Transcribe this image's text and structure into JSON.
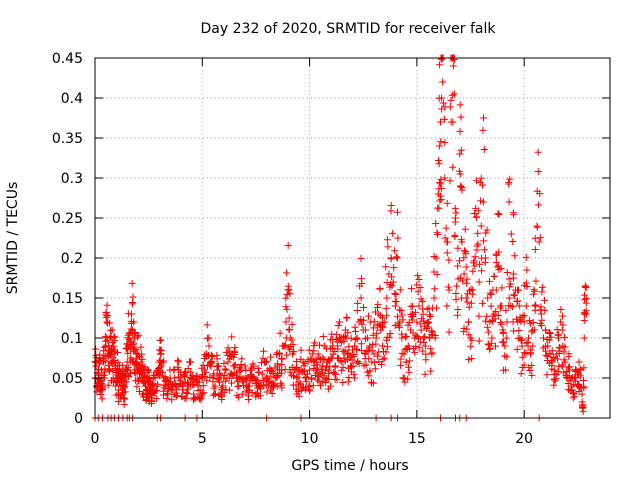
{
  "chart_data": {
    "type": "scatter",
    "title": "Day 232 of 2020, SRMTID for receiver falk",
    "xlabel": "GPS time / hours",
    "ylabel": "SRMTID / TECUs",
    "xlim": [
      0,
      24
    ],
    "ylim": [
      0,
      0.45
    ],
    "xticks": [
      0,
      5,
      10,
      15,
      20
    ],
    "yticks": [
      0,
      0.05,
      0.1,
      0.15,
      0.2,
      0.25,
      0.3,
      0.35,
      0.4,
      0.45
    ],
    "xtick_labels": [
      "0",
      "5",
      "10",
      "15",
      "20"
    ],
    "ytick_labels": [
      "0",
      "0.05",
      "0.1",
      "0.15",
      "0.2",
      "0.25",
      "0.3",
      "0.35",
      "0.4",
      "0.45"
    ],
    "grid": true,
    "marker": "+",
    "color": "#ff0000",
    "series": [
      {
        "name": "SRMTID",
        "points": [
          [
            0.0,
            0.05
          ],
          [
            0.05,
            0.065
          ],
          [
            0.1,
            0.04
          ],
          [
            0.15,
            0.055
          ],
          [
            0.2,
            0.07
          ],
          [
            0.25,
            0.045
          ],
          [
            0.3,
            0.06
          ],
          [
            0.35,
            0.035
          ],
          [
            0.4,
            0.075
          ],
          [
            0.45,
            0.05
          ],
          [
            0.5,
            0.09
          ],
          [
            0.55,
            0.12
          ],
          [
            0.6,
            0.08
          ],
          [
            0.65,
            0.06
          ],
          [
            0.7,
            0.1
          ],
          [
            0.75,
            0.07
          ],
          [
            0.8,
            0.11
          ],
          [
            0.85,
            0.05
          ],
          [
            0.9,
            0.085
          ],
          [
            0.95,
            0.065
          ],
          [
            1.0,
            0.045
          ],
          [
            1.05,
            0.06
          ],
          [
            1.1,
            0.035
          ],
          [
            1.15,
            0.05
          ],
          [
            1.2,
            0.04
          ],
          [
            1.25,
            0.03
          ],
          [
            1.3,
            0.055
          ],
          [
            1.35,
            0.025
          ],
          [
            1.4,
            0.045
          ],
          [
            1.45,
            0.06
          ],
          [
            1.5,
            0.07
          ],
          [
            1.55,
            0.09
          ],
          [
            1.6,
            0.1
          ],
          [
            1.65,
            0.075
          ],
          [
            1.7,
            0.13
          ],
          [
            1.75,
            0.11
          ],
          [
            1.8,
            0.12
          ],
          [
            1.85,
            0.085
          ],
          [
            1.9,
            0.07
          ],
          [
            1.95,
            0.065
          ],
          [
            2.0,
            0.08
          ],
          [
            2.05,
            0.06
          ],
          [
            2.1,
            0.055
          ],
          [
            2.15,
            0.07
          ],
          [
            2.2,
            0.05
          ],
          [
            2.25,
            0.045
          ],
          [
            2.3,
            0.06
          ],
          [
            2.35,
            0.04
          ],
          [
            2.4,
            0.035
          ],
          [
            2.45,
            0.05
          ],
          [
            2.5,
            0.045
          ],
          [
            2.55,
            0.03
          ],
          [
            2.6,
            0.04
          ],
          [
            2.65,
            0.025
          ],
          [
            2.7,
            0.035
          ],
          [
            2.8,
            0.05
          ],
          [
            2.9,
            0.04
          ],
          [
            3.0,
            0.085
          ],
          [
            3.05,
            0.07
          ],
          [
            3.1,
            0.065
          ],
          [
            3.2,
            0.05
          ],
          [
            3.3,
            0.04
          ],
          [
            3.4,
            0.03
          ],
          [
            3.5,
            0.045
          ],
          [
            3.6,
            0.035
          ],
          [
            3.7,
            0.05
          ],
          [
            3.8,
            0.04
          ],
          [
            3.9,
            0.06
          ],
          [
            4.0,
            0.05
          ],
          [
            4.1,
            0.035
          ],
          [
            4.2,
            0.045
          ],
          [
            4.3,
            0.04
          ],
          [
            4.4,
            0.07
          ],
          [
            4.5,
            0.05
          ],
          [
            4.6,
            0.03
          ],
          [
            4.7,
            0.045
          ],
          [
            4.8,
            0.04
          ],
          [
            4.9,
            0.035
          ],
          [
            5.0,
            0.05
          ],
          [
            5.1,
            0.06
          ],
          [
            5.2,
            0.08
          ],
          [
            5.3,
            0.1
          ],
          [
            5.4,
            0.07
          ],
          [
            5.5,
            0.05
          ],
          [
            5.6,
            0.04
          ],
          [
            5.7,
            0.06
          ],
          [
            5.8,
            0.045
          ],
          [
            5.9,
            0.035
          ],
          [
            6.0,
            0.05
          ],
          [
            6.1,
            0.06
          ],
          [
            6.2,
            0.07
          ],
          [
            6.3,
            0.055
          ],
          [
            6.4,
            0.08
          ],
          [
            6.5,
            0.065
          ],
          [
            6.6,
            0.05
          ],
          [
            6.7,
            0.04
          ],
          [
            6.8,
            0.06
          ],
          [
            6.9,
            0.045
          ],
          [
            7.0,
            0.05
          ],
          [
            7.1,
            0.035
          ],
          [
            7.2,
            0.04
          ],
          [
            7.3,
            0.06
          ],
          [
            7.4,
            0.05
          ],
          [
            7.5,
            0.03
          ],
          [
            7.6,
            0.045
          ],
          [
            7.7,
            0.04
          ],
          [
            7.8,
            0.055
          ],
          [
            7.9,
            0.07
          ],
          [
            8.0,
            0.05
          ],
          [
            8.1,
            0.045
          ],
          [
            8.2,
            0.06
          ],
          [
            8.3,
            0.04
          ],
          [
            8.4,
            0.05
          ],
          [
            8.5,
            0.065
          ],
          [
            8.6,
            0.08
          ],
          [
            8.7,
            0.06
          ],
          [
            8.8,
            0.09
          ],
          [
            8.9,
            0.12
          ],
          [
            9.0,
            0.16
          ],
          [
            9.05,
            0.125
          ],
          [
            9.1,
            0.1
          ],
          [
            9.2,
            0.08
          ],
          [
            9.3,
            0.06
          ],
          [
            9.4,
            0.05
          ],
          [
            9.5,
            0.045
          ],
          [
            9.6,
            0.06
          ],
          [
            9.7,
            0.07
          ],
          [
            9.8,
            0.05
          ],
          [
            9.9,
            0.055
          ],
          [
            10.0,
            0.06
          ],
          [
            10.1,
            0.05
          ],
          [
            10.2,
            0.07
          ],
          [
            10.3,
            0.06
          ],
          [
            10.4,
            0.08
          ],
          [
            10.5,
            0.055
          ],
          [
            10.6,
            0.065
          ],
          [
            10.7,
            0.09
          ],
          [
            10.8,
            0.07
          ],
          [
            10.9,
            0.06
          ],
          [
            11.0,
            0.075
          ],
          [
            11.1,
            0.08
          ],
          [
            11.2,
            0.065
          ],
          [
            11.3,
            0.09
          ],
          [
            11.4,
            0.1
          ],
          [
            11.5,
            0.07
          ],
          [
            11.6,
            0.075
          ],
          [
            11.7,
            0.1
          ],
          [
            11.8,
            0.08
          ],
          [
            11.9,
            0.065
          ],
          [
            12.0,
            0.085
          ],
          [
            12.1,
            0.09
          ],
          [
            12.2,
            0.1
          ],
          [
            12.3,
            0.12
          ],
          [
            12.4,
            0.15
          ],
          [
            12.5,
            0.11
          ],
          [
            12.6,
            0.08
          ],
          [
            12.7,
            0.1
          ],
          [
            12.8,
            0.09
          ],
          [
            12.9,
            0.07
          ],
          [
            13.0,
            0.08
          ],
          [
            13.1,
            0.1
          ],
          [
            13.2,
            0.13
          ],
          [
            13.3,
            0.11
          ],
          [
            13.4,
            0.09
          ],
          [
            13.5,
            0.12
          ],
          [
            13.6,
            0.15
          ],
          [
            13.7,
            0.18
          ],
          [
            13.8,
            0.2
          ],
          [
            13.9,
            0.17
          ],
          [
            14.0,
            0.14
          ],
          [
            14.1,
            0.2
          ],
          [
            14.2,
            0.12
          ],
          [
            14.3,
            0.1
          ],
          [
            14.4,
            0.08
          ],
          [
            14.5,
            0.07
          ],
          [
            14.6,
            0.09
          ],
          [
            14.7,
            0.11
          ],
          [
            14.8,
            0.13
          ],
          [
            14.9,
            0.1
          ],
          [
            15.0,
            0.12
          ],
          [
            15.1,
            0.14
          ],
          [
            15.2,
            0.11
          ],
          [
            15.3,
            0.1
          ],
          [
            15.4,
            0.09
          ],
          [
            15.5,
            0.12
          ],
          [
            15.6,
            0.1
          ],
          [
            15.7,
            0.08
          ],
          [
            15.8,
            0.15
          ],
          [
            15.9,
            0.2
          ],
          [
            16.0,
            0.28
          ],
          [
            16.05,
            0.34
          ],
          [
            16.1,
            0.37
          ],
          [
            16.15,
            0.4
          ],
          [
            16.2,
            0.42
          ],
          [
            16.3,
            0.3
          ],
          [
            16.4,
            0.22
          ],
          [
            16.5,
            0.16
          ],
          [
            16.6,
            0.37
          ],
          [
            16.7,
            0.44
          ],
          [
            16.75,
            0.405
          ],
          [
            16.8,
            0.25
          ],
          [
            16.9,
            0.19
          ],
          [
            17.0,
            0.33
          ],
          [
            17.05,
            0.29
          ],
          [
            17.1,
            0.22
          ],
          [
            17.2,
            0.18
          ],
          [
            17.3,
            0.15
          ],
          [
            17.4,
            0.12
          ],
          [
            17.5,
            0.1
          ],
          [
            17.6,
            0.16
          ],
          [
            17.7,
            0.19
          ],
          [
            17.8,
            0.21
          ],
          [
            17.9,
            0.17
          ],
          [
            18.0,
            0.24
          ],
          [
            18.1,
            0.27
          ],
          [
            18.2,
            0.2
          ],
          [
            18.3,
            0.15
          ],
          [
            18.4,
            0.12
          ],
          [
            18.5,
            0.1
          ],
          [
            18.6,
            0.13
          ],
          [
            18.7,
            0.16
          ],
          [
            18.8,
            0.19
          ],
          [
            18.9,
            0.14
          ],
          [
            19.0,
            0.11
          ],
          [
            19.1,
            0.09
          ],
          [
            19.2,
            0.12
          ],
          [
            19.3,
            0.27
          ],
          [
            19.4,
            0.23
          ],
          [
            19.5,
            0.18
          ],
          [
            19.6,
            0.16
          ],
          [
            19.7,
            0.12
          ],
          [
            19.8,
            0.1
          ],
          [
            19.9,
            0.09
          ],
          [
            20.0,
            0.12
          ],
          [
            20.1,
            0.14
          ],
          [
            20.2,
            0.1
          ],
          [
            20.3,
            0.08
          ],
          [
            20.4,
            0.09
          ],
          [
            20.5,
            0.14
          ],
          [
            20.6,
            0.24
          ],
          [
            20.7,
            0.22
          ],
          [
            20.8,
            0.13
          ],
          [
            20.9,
            0.1
          ],
          [
            21.0,
            0.11
          ],
          [
            21.1,
            0.09
          ],
          [
            21.2,
            0.08
          ],
          [
            21.3,
            0.07
          ],
          [
            21.4,
            0.06
          ],
          [
            21.5,
            0.08
          ],
          [
            21.6,
            0.1
          ],
          [
            21.7,
            0.12
          ],
          [
            21.8,
            0.09
          ],
          [
            21.9,
            0.07
          ],
          [
            22.0,
            0.05
          ],
          [
            22.1,
            0.06
          ],
          [
            22.2,
            0.04
          ],
          [
            22.3,
            0.03
          ],
          [
            22.4,
            0.05
          ],
          [
            22.5,
            0.04
          ],
          [
            22.6,
            0.06
          ],
          [
            22.7,
            0.02
          ],
          [
            22.75,
            0.008
          ],
          [
            22.8,
            0.1
          ],
          [
            22.85,
            0.165
          ],
          [
            22.9,
            0.13
          ]
        ]
      }
    ],
    "zero_points_x": [
      0.0,
      0.15,
      0.35,
      0.6,
      0.75,
      0.9,
      1.1,
      1.3,
      1.5,
      1.6,
      1.75,
      2.9,
      3.05,
      4.2,
      4.75,
      8.0,
      9.6,
      13.1,
      13.8,
      14.1,
      16.1,
      16.8,
      17.0,
      17.3,
      20.7
    ]
  }
}
